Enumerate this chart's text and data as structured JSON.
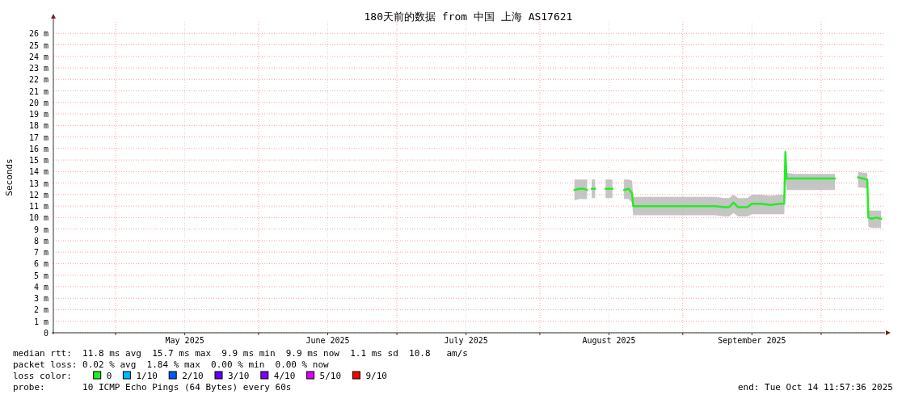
{
  "chart_data": {
    "type": "line",
    "title": "180天前的数据 from 中国 上海 AS17621",
    "ylabel": "Seconds",
    "xlim": [
      "2025-04-17T11:57",
      "2025-10-14T11:57"
    ],
    "xticks": [
      {
        "value": "2025-05-01",
        "label": null
      },
      {
        "value": "2025-05-16",
        "label": "May 2025"
      },
      {
        "value": "2025-06-01",
        "label": null
      },
      {
        "value": "2025-06-16",
        "label": "June 2025"
      },
      {
        "value": "2025-07-01",
        "label": null
      },
      {
        "value": "2025-07-16",
        "label": "July 2025"
      },
      {
        "value": "2025-08-01",
        "label": null
      },
      {
        "value": "2025-08-16",
        "label": "August 2025"
      },
      {
        "value": "2025-09-01",
        "label": null
      },
      {
        "value": "2025-09-16",
        "label": "September 2025"
      },
      {
        "value": "2025-10-01",
        "label": null
      }
    ],
    "ylim": [
      0,
      27
    ],
    "yticks": [
      0,
      {
        "value": 1,
        "label": "1 m"
      },
      {
        "value": 2,
        "label": "2 m"
      },
      {
        "value": 3,
        "label": "3 m"
      },
      {
        "value": 4,
        "label": "4 m"
      },
      {
        "value": 5,
        "label": "5 m"
      },
      {
        "value": 6,
        "label": "6 m"
      },
      {
        "value": 7,
        "label": "7 m"
      },
      {
        "value": 8,
        "label": "8 m"
      },
      {
        "value": 9,
        "label": "9 m"
      },
      {
        "value": 10,
        "label": "10 m"
      },
      {
        "value": 11,
        "label": "11 m"
      },
      {
        "value": 12,
        "label": "12 m"
      },
      {
        "value": 13,
        "label": "13 m"
      },
      {
        "value": 14,
        "label": "14 m"
      },
      {
        "value": 15,
        "label": "15 m"
      },
      {
        "value": 16,
        "label": "16 m"
      },
      {
        "value": 17,
        "label": "17 m"
      },
      {
        "value": 18,
        "label": "18 m"
      },
      {
        "value": 19,
        "label": "19 m"
      },
      {
        "value": 20,
        "label": "20 m"
      },
      {
        "value": 21,
        "label": "21 m"
      },
      {
        "value": 22,
        "label": "22 m"
      },
      {
        "value": 23,
        "label": "23 m"
      },
      {
        "value": 24,
        "label": "24 m"
      },
      {
        "value": 25,
        "label": "25 m"
      },
      {
        "value": 26,
        "label": "26 m"
      }
    ],
    "grid": true,
    "legend": "bottom",
    "legend_title": "loss color:",
    "x": [
      "2025-08-08T12:00",
      "2025-08-09T12:00",
      "2025-08-10T12:00",
      "2025-08-11T06:00",
      "2025-08-11T18:00",
      "2025-08-12T06:00",
      "2025-08-13T00:00",
      "2025-08-13T12:00",
      "2025-08-15T06:00",
      "2025-08-16T18:00",
      "2025-08-17T06:00",
      "2025-08-19T06:00",
      "2025-08-20T06:00",
      "2025-08-21T00:00",
      "2025-08-21T06:00",
      "2025-08-24T00:00",
      "2025-08-27T00:00",
      "2025-08-30T00:00",
      "2025-09-02T00:00",
      "2025-09-05T00:00",
      "2025-09-08T00:00",
      "2025-09-10T00:00",
      "2025-09-11T00:00",
      "2025-09-12T00:00",
      "2025-09-13T00:00",
      "2025-09-14T00:00",
      "2025-09-15T00:00",
      "2025-09-16T00:00",
      "2025-09-18T00:00",
      "2025-09-20T00:00",
      "2025-09-22T00:00",
      "2025-09-23T00:00",
      "2025-09-23T06:00",
      "2025-09-23T12:00",
      "2025-09-25T00:00",
      "2025-09-28T00:00",
      "2025-10-01T00:00",
      "2025-10-04T00:00",
      "2025-10-04T12:00",
      "2025-10-09T00:00",
      "2025-10-10T00:00",
      "2025-10-11T00:00",
      "2025-10-11T06:00",
      "2025-10-12T00:00",
      "2025-10-13T00:00",
      "2025-10-14T00:00"
    ],
    "series": [
      {
        "name": "0",
        "color": "#22ee22",
        "values": [
          12.4,
          12.5,
          12.5,
          12.4,
          null,
          12.5,
          12.5,
          null,
          12.5,
          12.5,
          null,
          12.4,
          12.5,
          12.1,
          11.0,
          11.0,
          11.0,
          11.0,
          11.0,
          11.0,
          11.0,
          10.9,
          10.9,
          11.3,
          10.9,
          10.9,
          10.9,
          11.2,
          11.2,
          11.1,
          11.2,
          11.2,
          15.7,
          13.4,
          13.4,
          13.4,
          13.4,
          13.4,
          null,
          13.5,
          13.4,
          13.3,
          10.0,
          9.9,
          10.0,
          9.9
        ],
        "lower": [
          11.5,
          11.6,
          11.6,
          11.6,
          null,
          11.7,
          11.7,
          null,
          11.7,
          11.7,
          null,
          11.6,
          11.6,
          11.3,
          10.2,
          10.2,
          10.2,
          10.2,
          10.2,
          10.2,
          10.2,
          10.1,
          10.1,
          10.4,
          10.1,
          10.1,
          10.1,
          10.3,
          10.3,
          10.3,
          10.3,
          10.3,
          13.4,
          12.4,
          12.4,
          12.4,
          12.4,
          12.4,
          null,
          12.6,
          12.6,
          12.5,
          9.2,
          9.1,
          9.1,
          9.1
        ],
        "upper": [
          13.3,
          13.3,
          13.3,
          13.3,
          null,
          13.3,
          13.3,
          null,
          13.3,
          13.3,
          null,
          13.3,
          13.3,
          13.2,
          11.8,
          11.8,
          11.8,
          11.8,
          11.8,
          11.8,
          11.8,
          11.7,
          11.7,
          12.0,
          11.7,
          11.7,
          11.7,
          12.0,
          12.0,
          11.9,
          12.0,
          12.0,
          16.0,
          13.9,
          13.8,
          13.8,
          13.8,
          13.8,
          null,
          14.0,
          13.9,
          13.9,
          10.6,
          10.6,
          10.6,
          10.6
        ]
      },
      {
        "name": "1/10",
        "color": "#00b8ff",
        "values": [
          null,
          null,
          null,
          null,
          null,
          null,
          null,
          null,
          null,
          null,
          null,
          null,
          null,
          null,
          null,
          null,
          null,
          null,
          null,
          null,
          null,
          null,
          null,
          null,
          null,
          null,
          null,
          null,
          null,
          null,
          null,
          null,
          null,
          null,
          null,
          null,
          null,
          null,
          null,
          null,
          null,
          null,
          null,
          null,
          null,
          null
        ]
      },
      {
        "name": "2/10",
        "color": "#0059ff",
        "values": [
          null,
          null,
          null,
          null,
          null,
          null,
          null,
          null,
          null,
          null,
          null,
          null,
          null,
          null,
          null,
          null,
          null,
          null,
          null,
          null,
          null,
          null,
          null,
          null,
          null,
          null,
          null,
          null,
          null,
          null,
          null,
          null,
          null,
          null,
          null,
          null,
          null,
          null,
          null,
          null,
          null,
          null,
          null,
          null,
          null,
          null
        ]
      },
      {
        "name": "3/10",
        "color": "#5e00ff",
        "values": [
          null,
          null,
          null,
          null,
          null,
          null,
          null,
          null,
          null,
          null,
          null,
          null,
          null,
          null,
          null,
          null,
          null,
          null,
          null,
          null,
          null,
          null,
          null,
          null,
          null,
          null,
          null,
          null,
          null,
          null,
          null,
          null,
          null,
          null,
          null,
          null,
          null,
          null,
          null,
          null,
          null,
          null,
          null,
          null,
          null,
          null
        ]
      },
      {
        "name": "4/10",
        "color": "#7e00ff",
        "values": [
          null,
          null,
          null,
          null,
          null,
          null,
          null,
          null,
          null,
          null,
          null,
          null,
          null,
          null,
          null,
          null,
          null,
          null,
          null,
          null,
          null,
          null,
          null,
          null,
          null,
          null,
          null,
          null,
          null,
          null,
          null,
          null,
          null,
          null,
          null,
          null,
          null,
          null,
          null,
          null,
          null,
          null,
          null,
          null,
          null,
          null
        ]
      },
      {
        "name": "5/10",
        "color": "#dd00ff",
        "values": [
          null,
          null,
          null,
          null,
          null,
          null,
          null,
          null,
          null,
          null,
          null,
          null,
          null,
          null,
          null,
          null,
          null,
          null,
          null,
          null,
          null,
          null,
          null,
          null,
          null,
          null,
          null,
          null,
          null,
          null,
          null,
          null,
          null,
          null,
          null,
          null,
          null,
          null,
          null,
          null,
          null,
          null,
          null,
          null,
          null,
          null
        ]
      },
      {
        "name": "9/10",
        "color": "#ff0000",
        "values": [
          null,
          null,
          null,
          null,
          null,
          null,
          null,
          null,
          null,
          null,
          null,
          null,
          null,
          null,
          null,
          null,
          null,
          null,
          null,
          null,
          null,
          null,
          null,
          null,
          null,
          null,
          null,
          null,
          null,
          null,
          null,
          null,
          null,
          null,
          null,
          null,
          null,
          null,
          null,
          null,
          null,
          null,
          null,
          null,
          null,
          null
        ]
      }
    ],
    "annotations": [
      "median rtt:  11.8 ms avg  15.7 ms max  9.9 ms min  9.9 ms now  1.1 ms sd  10.8   am/s",
      "packet loss: 0.02 % avg  1.84 % max  0.00 % min  0.00 % now",
      "probe:       10 ICMP Echo Pings (64 Bytes) every 60s",
      "end: Tue Oct 14 11:57:36 2025"
    ]
  }
}
